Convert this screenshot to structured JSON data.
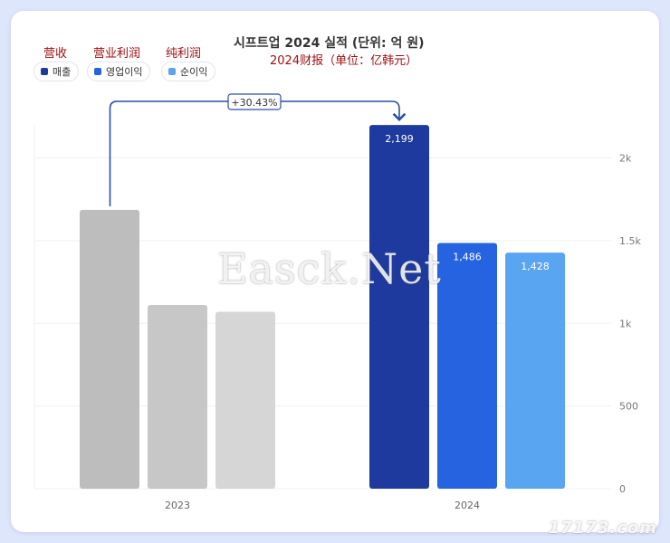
{
  "header": {
    "title": "시프트업 2024 실적 (단위: 억 원)",
    "subtitle": "2024财报（单位：亿韩元）"
  },
  "legend": [
    {
      "label": "매출",
      "cn": "营收",
      "color": "#1e3a9e"
    },
    {
      "label": "영업이익",
      "cn": "营业利润",
      "color": "#2563e0"
    },
    {
      "label": "순이익",
      "cn": "纯利润",
      "color": "#5aa5f2"
    }
  ],
  "growth_label": "+30.43%",
  "watermark": "Easck.Net",
  "corner_mark": "17173.com",
  "chart_data": {
    "type": "bar",
    "categories": [
      "2023",
      "2024"
    ],
    "series": [
      {
        "name": "매출",
        "values": [
          1686,
          2199
        ]
      },
      {
        "name": "영업이익",
        "values": [
          1111,
          1486
        ]
      },
      {
        "name": "순이익",
        "values": [
          1070,
          1428
        ]
      }
    ],
    "data_labels": [
      null,
      [
        "2,199",
        "1,486",
        "1,428"
      ]
    ],
    "colors_2023": [
      "#bdbdbd",
      "#c7c7c7",
      "#d6d6d6"
    ],
    "colors_2024": [
      "#1e3a9e",
      "#2563e0",
      "#5aa5f2"
    ],
    "ylim": [
      0,
      2200
    ],
    "yticks": [
      0,
      500,
      1000,
      1500,
      2000
    ],
    "ytick_labels": [
      "0",
      "500",
      "1k",
      "1.5k",
      "2k"
    ],
    "grid": true
  }
}
